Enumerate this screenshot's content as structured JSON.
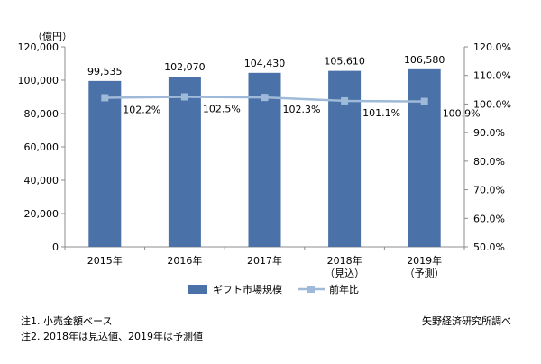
{
  "chart_data": {
    "type": "bar",
    "categories": [
      "2015年",
      "2016年",
      "2017年",
      "2018年",
      "2019年"
    ],
    "category_sublabels": [
      "",
      "",
      "",
      "（見込）",
      "（予測）"
    ],
    "series": [
      {
        "name": "ギフト市場規模",
        "type": "bar",
        "axis": "left",
        "color": "#4a72a8",
        "values": [
          99535,
          102070,
          104430,
          105610,
          106580
        ],
        "data_labels": [
          "99,535",
          "102,070",
          "104,430",
          "105,610",
          "106,580"
        ]
      },
      {
        "name": "前年比",
        "type": "line",
        "axis": "right",
        "color": "#9fb9d8",
        "values": [
          102.2,
          102.5,
          102.3,
          101.1,
          100.9
        ],
        "data_labels": [
          "102.2%",
          "102.5%",
          "102.3%",
          "101.1%",
          "100.9%"
        ]
      }
    ],
    "y_left": {
      "unit_label": "（億円）",
      "ylim": [
        0,
        120000
      ],
      "ticks": [
        0,
        20000,
        40000,
        60000,
        80000,
        100000,
        120000
      ],
      "tick_labels": [
        "0",
        "20,000",
        "40,000",
        "60,000",
        "80,000",
        "100,000",
        "120,000"
      ]
    },
    "y_right": {
      "ylim": [
        50,
        120
      ],
      "ticks": [
        50,
        60,
        70,
        80,
        90,
        100,
        110,
        120
      ],
      "tick_labels": [
        "50.0%",
        "60.0%",
        "70.0%",
        "80.0%",
        "90.0%",
        "100.0%",
        "110.0%",
        "120.0%"
      ]
    },
    "legend_position": "bottom",
    "grid": false
  },
  "notes": {
    "note1": "注1. 小売金額ベース",
    "note2": "注2. 2018年は見込値、2019年は予測値",
    "source": "矢野経済研究所調べ"
  }
}
